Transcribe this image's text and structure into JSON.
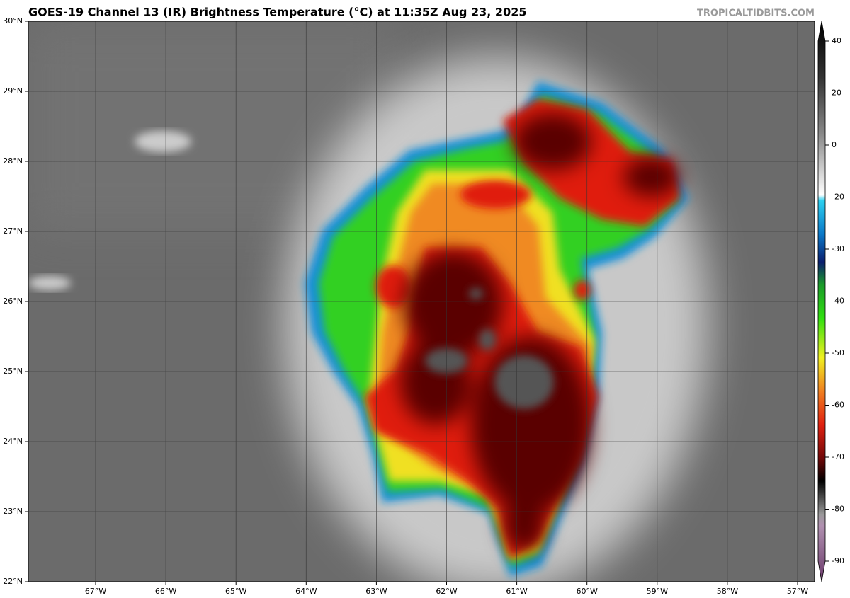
{
  "title": "GOES-19 Channel 13 (IR) Brightness Temperature (°C) at 11:35Z Aug 23, 2025",
  "watermark": "TROPICALTIDBITS.COM",
  "lat_labels": [
    "30°N",
    "29°N",
    "28°N",
    "27°N",
    "26°N",
    "25°N",
    "24°N",
    "23°N",
    "22°N"
  ],
  "lon_labels": [
    "67°W",
    "66°W",
    "65°W",
    "64°W",
    "63°W",
    "62°W",
    "61°W",
    "60°W",
    "59°W",
    "58°W",
    "57°W"
  ],
  "colorbar_ticks": [
    40,
    20,
    0,
    -20,
    -30,
    -40,
    -50,
    -60,
    -70,
    -80,
    -90
  ]
}
